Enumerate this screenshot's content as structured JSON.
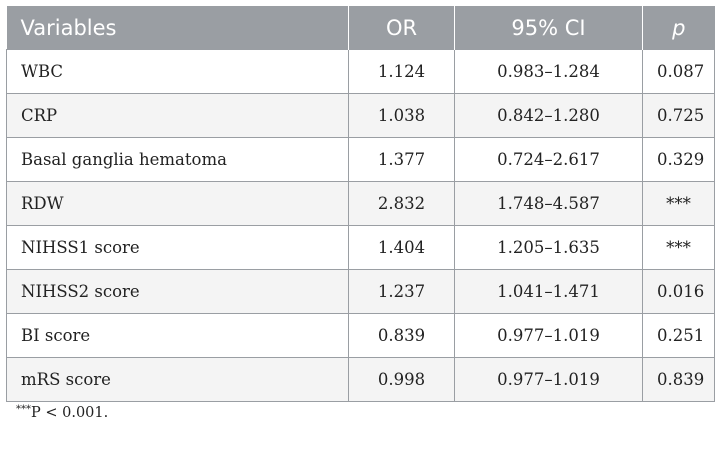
{
  "table": {
    "headers": [
      "Variables",
      "OR",
      "95% CI",
      "p"
    ],
    "rows": [
      [
        "WBC",
        "1.124",
        "0.983–1.284",
        "0.087"
      ],
      [
        "CRP",
        "1.038",
        "0.842–1.280",
        "0.725"
      ],
      [
        "Basal ganglia hematoma",
        "1.377",
        "0.724–2.617",
        "0.329"
      ],
      [
        "RDW",
        "2.832",
        "1.748–4.587",
        "***"
      ],
      [
        "NIHSS1 score",
        "1.404",
        "1.205–1.635",
        "***"
      ],
      [
        "NIHSS2 score",
        "1.237",
        "1.041–1.471",
        "0.016"
      ],
      [
        "BI score",
        "0.839",
        "0.977–1.019",
        "0.251"
      ],
      [
        "mRS score",
        "0.998",
        "0.977–1.019",
        "0.839"
      ]
    ]
  },
  "footnote": {
    "marker": "***",
    "text": "P < 0.001."
  }
}
